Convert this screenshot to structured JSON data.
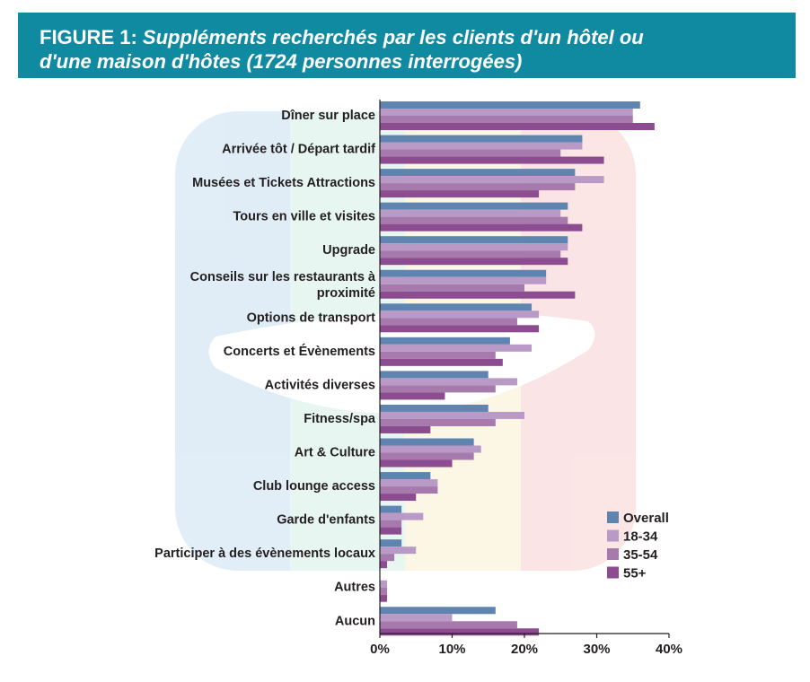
{
  "header": {
    "lead": "FIGURE 1:",
    "subtitle_line1": "Suppléments recherchés par les clients d'un hôtel ou",
    "subtitle_line2": "d'une maison d'hôtes (1724 personnes interrogées)"
  },
  "chart_data": {
    "type": "bar",
    "orientation": "horizontal",
    "title": "FIGURE 1: Suppléments recherchés par les clients d'un hôtel ou d'une maison d'hôtes (1724 personnes interrogées)",
    "xlabel": "",
    "ylabel": "",
    "xlim": [
      0,
      40
    ],
    "xticks": [
      "0%",
      "10%",
      "20%",
      "30%",
      "40%"
    ],
    "grid": false,
    "legend_position": "bottom-right",
    "categories": [
      [
        "Dîner sur place"
      ],
      [
        "Arrivée tôt / Départ tardif"
      ],
      [
        "Musées et Tickets Attractions"
      ],
      [
        "Tours en ville et visites"
      ],
      [
        "Upgrade"
      ],
      [
        "Conseils sur les restaurants à",
        "proximité"
      ],
      [
        "Options de transport"
      ],
      [
        "Concerts et Évènements"
      ],
      [
        "Activités diverses"
      ],
      [
        "Fitness/spa"
      ],
      [
        "Art & Culture"
      ],
      [
        "Club lounge access"
      ],
      [
        "Garde d'enfants"
      ],
      [
        "Participer à des évènements locaux"
      ],
      [
        "Autres"
      ],
      [
        "Aucun"
      ]
    ],
    "series": [
      {
        "name": "Overall",
        "color": "#5f84b0",
        "values": [
          36,
          28,
          27,
          26,
          26,
          23,
          21,
          18,
          15,
          15,
          13,
          7,
          3,
          3,
          0,
          16
        ]
      },
      {
        "name": "18-34",
        "color": "#b99ac6",
        "values": [
          35,
          28,
          31,
          25,
          26,
          23,
          22,
          21,
          19,
          20,
          14,
          8,
          6,
          5,
          1,
          10
        ]
      },
      {
        "name": "35-54",
        "color": "#a77aae",
        "values": [
          35,
          25,
          27,
          26,
          25,
          20,
          19,
          16,
          16,
          16,
          13,
          8,
          3,
          2,
          1,
          19
        ]
      },
      {
        "name": "55+",
        "color": "#8b4c90",
        "values": [
          38,
          31,
          22,
          28,
          26,
          27,
          22,
          17,
          9,
          7,
          10,
          5,
          3,
          1,
          1,
          22
        ]
      }
    ]
  }
}
